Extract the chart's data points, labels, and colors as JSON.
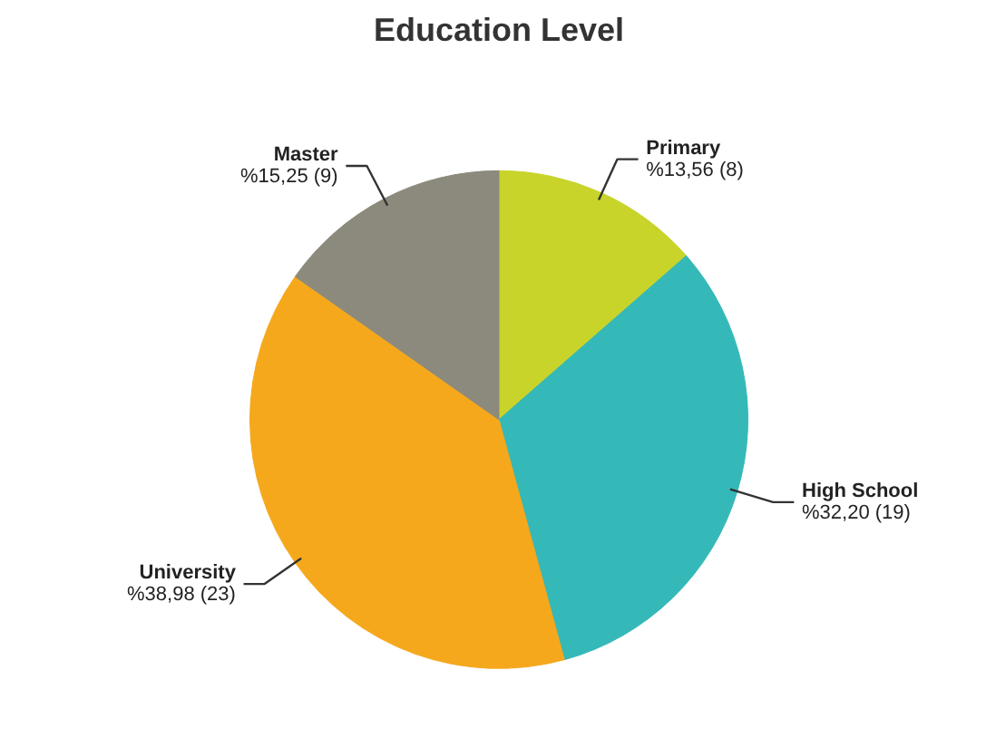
{
  "chart_data": {
    "type": "pie",
    "title": "Education Level",
    "categories": [
      "Primary",
      "High School",
      "University",
      "Master"
    ],
    "values": [
      8,
      19,
      23,
      9
    ],
    "colors": [
      "#c8d42a",
      "#35b8b8",
      "#f5a81c",
      "#8c8a7c"
    ],
    "value_labels": [
      "%13,56 (8)",
      "%32,20 (19)",
      "%38,98 (23)",
      "%15,25 (9)"
    ],
    "legend": false
  }
}
